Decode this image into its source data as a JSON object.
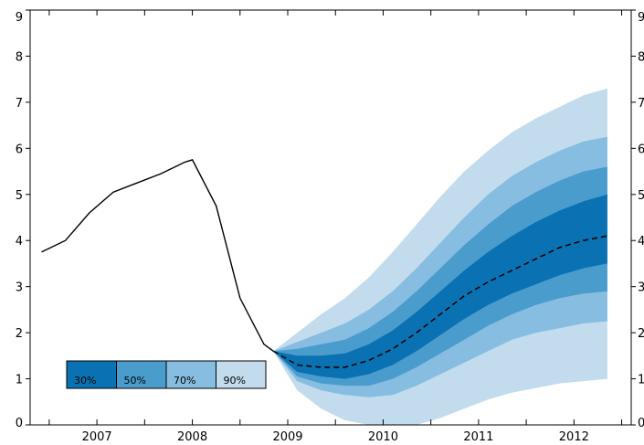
{
  "chart_data": {
    "type": "area",
    "title": "",
    "xlabel": "",
    "ylabel": "",
    "xlim": [
      2006.3,
      2012.6
    ],
    "ylim": [
      0,
      9
    ],
    "grid": false,
    "x_tick_labels": [
      "2007",
      "2008",
      "2009",
      "2010",
      "2011",
      "2012"
    ],
    "y_tick_labels": [
      "0",
      "1",
      "2",
      "3",
      "4",
      "5",
      "6",
      "7",
      "8",
      "9"
    ],
    "legend": {
      "placement": "lower-left",
      "entries": [
        {
          "label": "30%",
          "color": "#0a72b2"
        },
        {
          "label": "50%",
          "color": "#4a9ccd"
        },
        {
          "label": "70%",
          "color": "#86bde0"
        },
        {
          "label": "90%",
          "color": "#c2dcee"
        }
      ]
    },
    "history": {
      "x": [
        2006.42,
        2006.67,
        2006.92,
        2007.17,
        2007.42,
        2007.67,
        2007.92,
        2008.0,
        2008.25,
        2008.5,
        2008.75,
        2008.85
      ],
      "y": [
        3.75,
        4.0,
        4.6,
        5.05,
        5.25,
        5.45,
        5.7,
        5.75,
        4.75,
        2.75,
        1.75,
        1.6
      ]
    },
    "projection": {
      "x": [
        2008.85,
        2009.1,
        2009.35,
        2009.6,
        2009.85,
        2010.1,
        2010.35,
        2010.6,
        2010.85,
        2011.1,
        2011.35,
        2011.6,
        2011.85,
        2012.1,
        2012.35
      ],
      "median": [
        1.6,
        1.3,
        1.25,
        1.25,
        1.4,
        1.65,
        2.0,
        2.4,
        2.8,
        3.1,
        3.35,
        3.6,
        3.85,
        4.0,
        4.1
      ],
      "bands": [
        {
          "label": "30%",
          "color": "#0a72b2",
          "lower": [
            1.6,
            1.15,
            1.05,
            1.0,
            1.1,
            1.3,
            1.6,
            1.95,
            2.3,
            2.6,
            2.85,
            3.05,
            3.25,
            3.4,
            3.5
          ],
          "upper": [
            1.6,
            1.5,
            1.5,
            1.55,
            1.75,
            2.05,
            2.45,
            2.9,
            3.35,
            3.75,
            4.1,
            4.4,
            4.65,
            4.85,
            5.0
          ]
        },
        {
          "label": "50%",
          "color": "#4a9ccd",
          "lower": [
            1.6,
            1.05,
            0.9,
            0.85,
            0.85,
            1.0,
            1.25,
            1.55,
            1.85,
            2.15,
            2.4,
            2.6,
            2.75,
            2.85,
            2.9
          ],
          "upper": [
            1.6,
            1.65,
            1.75,
            1.85,
            2.1,
            2.45,
            2.9,
            3.4,
            3.9,
            4.35,
            4.75,
            5.05,
            5.3,
            5.5,
            5.6
          ]
        },
        {
          "label": "70%",
          "color": "#86bde0",
          "lower": [
            1.6,
            0.95,
            0.75,
            0.65,
            0.6,
            0.65,
            0.85,
            1.1,
            1.35,
            1.6,
            1.85,
            2.0,
            2.1,
            2.2,
            2.25
          ],
          "upper": [
            1.6,
            1.8,
            2.0,
            2.2,
            2.5,
            2.9,
            3.4,
            3.95,
            4.5,
            5.0,
            5.4,
            5.7,
            5.95,
            6.15,
            6.25
          ]
        },
        {
          "label": "90%",
          "color": "#c2dcee",
          "lower": [
            1.6,
            0.75,
            0.35,
            0.1,
            0.0,
            0.0,
            0.0,
            0.15,
            0.35,
            0.55,
            0.7,
            0.8,
            0.9,
            0.95,
            1.0
          ],
          "upper": [
            1.6,
            2.0,
            2.4,
            2.75,
            3.2,
            3.75,
            4.35,
            4.95,
            5.5,
            5.95,
            6.35,
            6.65,
            6.9,
            7.15,
            7.3
          ]
        }
      ]
    }
  }
}
